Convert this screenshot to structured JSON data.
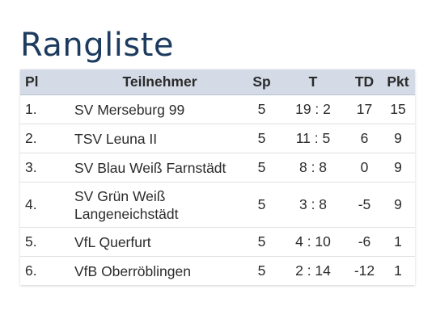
{
  "title": "Rangliste",
  "headers": {
    "pl": "Pl",
    "name": "Teilnehmer",
    "sp": "Sp",
    "t": "T",
    "td": "TD",
    "pkt": "Pkt"
  },
  "rows": [
    {
      "pl": "1.",
      "name": "SV Merseburg 99",
      "sp": "5",
      "t": "19 : 2",
      "td": "17",
      "pkt": "15"
    },
    {
      "pl": "2.",
      "name": "TSV Leuna II",
      "sp": "5",
      "t": "11 : 5",
      "td": "6",
      "pkt": "9"
    },
    {
      "pl": "3.",
      "name": "SV Blau Weiß Farnstädt",
      "sp": "5",
      "t": "8 : 8",
      "td": "0",
      "pkt": "9"
    },
    {
      "pl": "4.",
      "name": "SV Grün Weiß Langeneichstädt",
      "sp": "5",
      "t": "3 : 8",
      "td": "-5",
      "pkt": "9"
    },
    {
      "pl": "5.",
      "name": "VfL Querfurt",
      "sp": "5",
      "t": "4 : 10",
      "td": "-6",
      "pkt": "1"
    },
    {
      "pl": "6.",
      "name": "VfB Oberröblingen",
      "sp": "5",
      "t": "2 : 14",
      "td": "-12",
      "pkt": "1"
    }
  ]
}
